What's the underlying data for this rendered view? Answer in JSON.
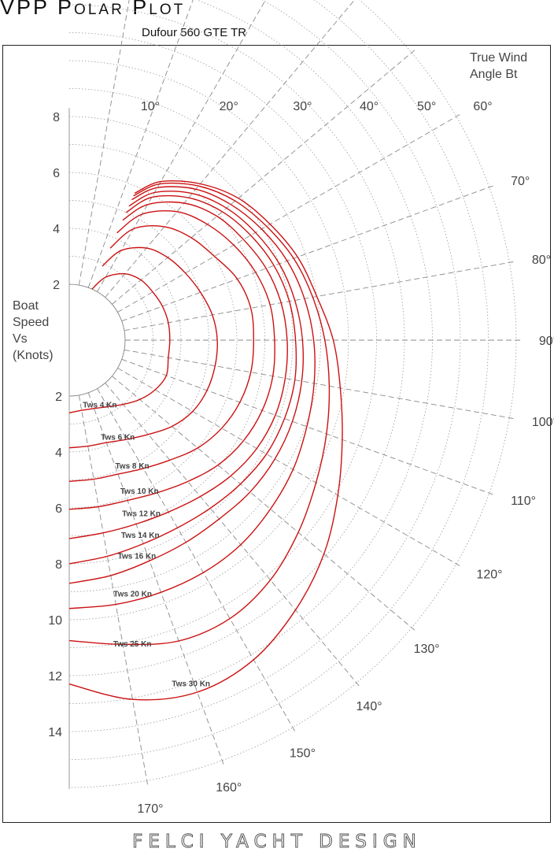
{
  "header": {
    "title": "VPP Polar Plot",
    "subtitle": "Dufour 560 GTE TR"
  },
  "footer": {
    "brand": "FELCI YACHT DESIGN"
  },
  "chart_data": {
    "type": "polar",
    "title": "VPP Polar Plot",
    "subtitle": "Dufour 560 GTE TR",
    "angle_axis_label": [
      "True Wind",
      "Angle Bt"
    ],
    "radius_axis_label": [
      "Boat",
      "Speed",
      "Vs",
      "(Knots)"
    ],
    "angle_ticks": [
      "10°",
      "20°",
      "30°",
      "40°",
      "50°",
      "60°",
      "70°",
      "80°",
      "90°",
      "100°",
      "110°",
      "120°",
      "130°",
      "140°",
      "150°",
      "160°",
      "170°"
    ],
    "angle_tick_values": [
      10,
      20,
      30,
      40,
      50,
      60,
      70,
      80,
      90,
      100,
      110,
      120,
      130,
      140,
      150,
      160,
      170
    ],
    "upper_speed_ticks": [
      "8",
      "6",
      "4",
      "2"
    ],
    "upper_speed_values": [
      8,
      6,
      4,
      2
    ],
    "lower_speed_ticks": [
      "2",
      "4",
      "6",
      "8",
      "10",
      "12",
      "14"
    ],
    "lower_speed_values": [
      2,
      4,
      6,
      8,
      10,
      12,
      14
    ],
    "angle_range": [
      0,
      180
    ],
    "speed_unit": "Knots",
    "color": "#cc1111",
    "series": [
      {
        "name": "Tws 4 Kn",
        "label_angle": 141,
        "points": [
          [
            24,
            2.0
          ],
          [
            30,
            2.6
          ],
          [
            40,
            3.1
          ],
          [
            50,
            3.35
          ],
          [
            60,
            3.45
          ],
          [
            70,
            3.55
          ],
          [
            80,
            3.6
          ],
          [
            90,
            3.6
          ],
          [
            100,
            3.6
          ],
          [
            110,
            3.7
          ],
          [
            120,
            3.55
          ],
          [
            130,
            3.3
          ],
          [
            140,
            3.0
          ],
          [
            150,
            2.75
          ],
          [
            160,
            2.6
          ],
          [
            170,
            2.55
          ],
          [
            180,
            2.6
          ]
        ]
      },
      {
        "name": "Tws 6 Kn",
        "label_angle": 144,
        "points": [
          [
            24,
            2.9
          ],
          [
            30,
            3.7
          ],
          [
            40,
            4.3
          ],
          [
            50,
            4.6
          ],
          [
            60,
            4.8
          ],
          [
            70,
            5.0
          ],
          [
            80,
            5.2
          ],
          [
            90,
            5.3
          ],
          [
            100,
            5.3
          ],
          [
            110,
            5.25
          ],
          [
            120,
            5.1
          ],
          [
            130,
            4.8
          ],
          [
            140,
            4.4
          ],
          [
            150,
            4.1
          ],
          [
            160,
            3.9
          ],
          [
            170,
            3.85
          ],
          [
            180,
            3.85
          ]
        ]
      },
      {
        "name": "Tws 8 Kn",
        "label_angle": 146,
        "points": [
          [
            24,
            3.6
          ],
          [
            30,
            4.6
          ],
          [
            40,
            5.3
          ],
          [
            50,
            5.7
          ],
          [
            60,
            6.0
          ],
          [
            70,
            6.4
          ],
          [
            80,
            6.6
          ],
          [
            90,
            6.6
          ],
          [
            100,
            6.6
          ],
          [
            110,
            6.5
          ],
          [
            120,
            6.3
          ],
          [
            130,
            6.0
          ],
          [
            140,
            5.6
          ],
          [
            150,
            5.3
          ],
          [
            160,
            5.1
          ],
          [
            170,
            5.05
          ],
          [
            180,
            5.05
          ]
        ]
      },
      {
        "name": "Tws 10 Kn",
        "label_angle": 148,
        "points": [
          [
            24,
            4.2
          ],
          [
            30,
            5.2
          ],
          [
            40,
            6.0
          ],
          [
            50,
            6.45
          ],
          [
            60,
            6.8
          ],
          [
            70,
            7.1
          ],
          [
            80,
            7.3
          ],
          [
            90,
            7.35
          ],
          [
            100,
            7.4
          ],
          [
            110,
            7.35
          ],
          [
            120,
            7.2
          ],
          [
            130,
            6.95
          ],
          [
            140,
            6.6
          ],
          [
            150,
            6.3
          ],
          [
            160,
            6.1
          ],
          [
            170,
            6.05
          ],
          [
            180,
            6.05
          ]
        ]
      },
      {
        "name": "Tws 12 Kn",
        "label_angle": 151,
        "points": [
          [
            24,
            4.7
          ],
          [
            30,
            5.6
          ],
          [
            40,
            6.4
          ],
          [
            50,
            6.9
          ],
          [
            60,
            7.2
          ],
          [
            70,
            7.5
          ],
          [
            80,
            7.7
          ],
          [
            90,
            7.8
          ],
          [
            100,
            7.85
          ],
          [
            110,
            7.85
          ],
          [
            120,
            7.75
          ],
          [
            130,
            7.55
          ],
          [
            140,
            7.3
          ],
          [
            150,
            7.1
          ],
          [
            160,
            7.0
          ],
          [
            170,
            7.0
          ],
          [
            180,
            7.1
          ]
        ]
      },
      {
        "name": "Tws 14 Kn",
        "label_angle": 154,
        "points": [
          [
            24,
            5.0
          ],
          [
            30,
            5.9
          ],
          [
            40,
            6.65
          ],
          [
            50,
            7.15
          ],
          [
            60,
            7.5
          ],
          [
            70,
            7.8
          ],
          [
            80,
            8.0
          ],
          [
            90,
            8.1
          ],
          [
            100,
            8.2
          ],
          [
            110,
            8.2
          ],
          [
            120,
            8.15
          ],
          [
            130,
            8.0
          ],
          [
            140,
            7.85
          ],
          [
            150,
            7.75
          ],
          [
            160,
            7.75
          ],
          [
            170,
            7.85
          ],
          [
            180,
            8.0
          ]
        ]
      },
      {
        "name": "Tws 16 Kn",
        "label_angle": 157,
        "points": [
          [
            24,
            5.25
          ],
          [
            30,
            6.1
          ],
          [
            40,
            6.85
          ],
          [
            50,
            7.35
          ],
          [
            60,
            7.7
          ],
          [
            70,
            8.0
          ],
          [
            80,
            8.2
          ],
          [
            90,
            8.35
          ],
          [
            100,
            8.45
          ],
          [
            110,
            8.5
          ],
          [
            120,
            8.5
          ],
          [
            130,
            8.45
          ],
          [
            140,
            8.35
          ],
          [
            150,
            8.35
          ],
          [
            160,
            8.4
          ],
          [
            170,
            8.55
          ],
          [
            180,
            8.7
          ]
        ]
      },
      {
        "name": "Tws 20 Kn",
        "label_angle": 161,
        "points": [
          [
            24,
            5.5
          ],
          [
            30,
            6.3
          ],
          [
            40,
            7.05
          ],
          [
            50,
            7.55
          ],
          [
            60,
            7.95
          ],
          [
            70,
            8.3
          ],
          [
            80,
            8.55
          ],
          [
            90,
            8.75
          ],
          [
            100,
            8.9
          ],
          [
            110,
            9.05
          ],
          [
            120,
            9.25
          ],
          [
            130,
            9.4
          ],
          [
            140,
            9.55
          ],
          [
            150,
            9.6
          ],
          [
            160,
            9.6
          ],
          [
            170,
            9.6
          ],
          [
            180,
            9.6
          ]
        ]
      },
      {
        "name": "Tws 25 Kn",
        "label_angle": 164,
        "points": [
          [
            24,
            5.65
          ],
          [
            30,
            6.45
          ],
          [
            40,
            7.2
          ],
          [
            50,
            7.75
          ],
          [
            60,
            8.15
          ],
          [
            70,
            8.55
          ],
          [
            80,
            8.85
          ],
          [
            90,
            9.15
          ],
          [
            100,
            9.45
          ],
          [
            110,
            9.8
          ],
          [
            120,
            10.2
          ],
          [
            130,
            10.7
          ],
          [
            140,
            11.2
          ],
          [
            150,
            11.5
          ],
          [
            160,
            11.45
          ],
          [
            170,
            11.05
          ],
          [
            180,
            10.75
          ]
        ]
      },
      {
        "name": "Tws 30 Kn",
        "label_angle": 157,
        "points": [
          [
            24,
            5.75
          ],
          [
            30,
            6.55
          ],
          [
            40,
            7.3
          ],
          [
            50,
            7.9
          ],
          [
            60,
            8.3
          ],
          [
            70,
            8.7
          ],
          [
            80,
            9.0
          ],
          [
            90,
            9.45
          ],
          [
            100,
            9.85
          ],
          [
            110,
            10.4
          ],
          [
            120,
            11.1
          ],
          [
            130,
            11.9
          ],
          [
            140,
            12.6
          ],
          [
            150,
            13.2
          ],
          [
            160,
            13.4
          ],
          [
            170,
            13.05
          ],
          [
            180,
            12.3
          ]
        ]
      }
    ]
  }
}
